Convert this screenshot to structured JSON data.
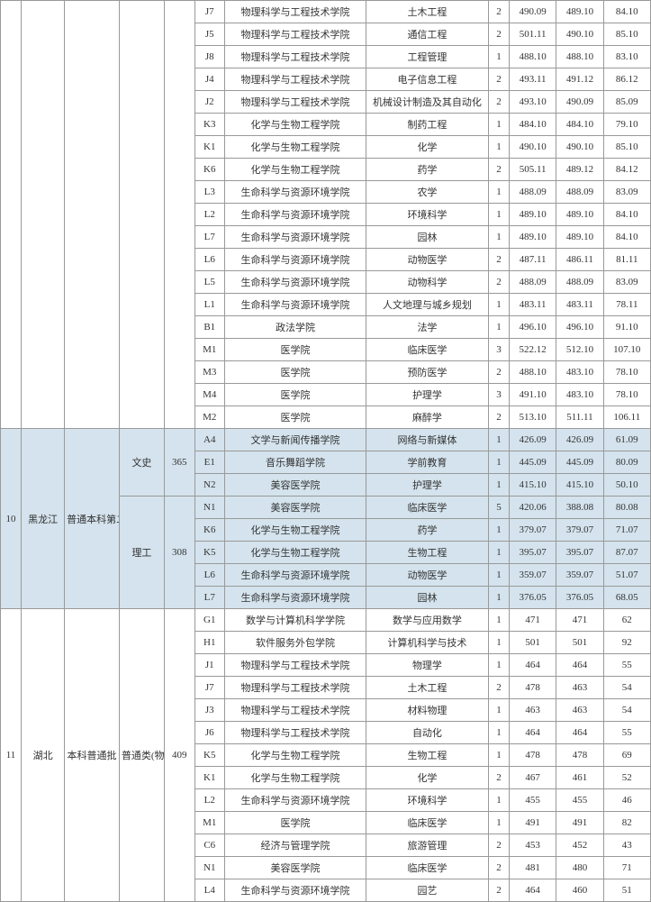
{
  "group1_rows": [
    {
      "code": "J7",
      "college": "物理科学与工程技术学院",
      "major": "土木工程",
      "n": "2",
      "a": "490.09",
      "b": "489.10",
      "c": "84.10"
    },
    {
      "code": "J5",
      "college": "物理科学与工程技术学院",
      "major": "通信工程",
      "n": "2",
      "a": "501.11",
      "b": "490.10",
      "c": "85.10"
    },
    {
      "code": "J8",
      "college": "物理科学与工程技术学院",
      "major": "工程管理",
      "n": "1",
      "a": "488.10",
      "b": "488.10",
      "c": "83.10"
    },
    {
      "code": "J4",
      "college": "物理科学与工程技术学院",
      "major": "电子信息工程",
      "n": "2",
      "a": "493.11",
      "b": "491.12",
      "c": "86.12"
    },
    {
      "code": "J2",
      "college": "物理科学与工程技术学院",
      "major": "机械设计制造及其自动化",
      "n": "2",
      "a": "493.10",
      "b": "490.09",
      "c": "85.09"
    },
    {
      "code": "K3",
      "college": "化学与生物工程学院",
      "major": "制药工程",
      "n": "1",
      "a": "484.10",
      "b": "484.10",
      "c": "79.10"
    },
    {
      "code": "K1",
      "college": "化学与生物工程学院",
      "major": "化学",
      "n": "1",
      "a": "490.10",
      "b": "490.10",
      "c": "85.10"
    },
    {
      "code": "K6",
      "college": "化学与生物工程学院",
      "major": "药学",
      "n": "2",
      "a": "505.11",
      "b": "489.12",
      "c": "84.12"
    },
    {
      "code": "L3",
      "college": "生命科学与资源环境学院",
      "major": "农学",
      "n": "1",
      "a": "488.09",
      "b": "488.09",
      "c": "83.09"
    },
    {
      "code": "L2",
      "college": "生命科学与资源环境学院",
      "major": "环境科学",
      "n": "1",
      "a": "489.10",
      "b": "489.10",
      "c": "84.10"
    },
    {
      "code": "L7",
      "college": "生命科学与资源环境学院",
      "major": "园林",
      "n": "1",
      "a": "489.10",
      "b": "489.10",
      "c": "84.10"
    },
    {
      "code": "L6",
      "college": "生命科学与资源环境学院",
      "major": "动物医学",
      "n": "2",
      "a": "487.11",
      "b": "486.11",
      "c": "81.11"
    },
    {
      "code": "L5",
      "college": "生命科学与资源环境学院",
      "major": "动物科学",
      "n": "2",
      "a": "488.09",
      "b": "488.09",
      "c": "83.09"
    },
    {
      "code": "L1",
      "college": "生命科学与资源环境学院",
      "major": "人文地理与城乡规划",
      "n": "1",
      "a": "483.11",
      "b": "483.11",
      "c": "78.11"
    },
    {
      "code": "B1",
      "college": "政法学院",
      "major": "法学",
      "n": "1",
      "a": "496.10",
      "b": "496.10",
      "c": "91.10"
    },
    {
      "code": "M1",
      "college": "医学院",
      "major": "临床医学",
      "n": "3",
      "a": "522.12",
      "b": "512.10",
      "c": "107.10"
    },
    {
      "code": "M3",
      "college": "医学院",
      "major": "预防医学",
      "n": "2",
      "a": "488.10",
      "b": "483.10",
      "c": "78.10"
    },
    {
      "code": "M4",
      "college": "医学院",
      "major": "护理学",
      "n": "3",
      "a": "491.10",
      "b": "483.10",
      "c": "78.10"
    },
    {
      "code": "M2",
      "college": "医学院",
      "major": "麻醉学",
      "n": "2",
      "a": "513.10",
      "b": "511.11",
      "c": "106.11"
    }
  ],
  "group2_idx": "10",
  "group2_prov": "黑龙江",
  "group2_batch": "普通本科第二批 A 段",
  "group2_subj1": "文史",
  "group2_line1": "365",
  "group2_subj2": "理工",
  "group2_line2": "308",
  "group2_rows1": [
    {
      "code": "A4",
      "college": "文学与新闻传播学院",
      "major": "网络与新媒体",
      "n": "1",
      "a": "426.09",
      "b": "426.09",
      "c": "61.09"
    },
    {
      "code": "E1",
      "college": "音乐舞蹈学院",
      "major": "学前教育",
      "n": "1",
      "a": "445.09",
      "b": "445.09",
      "c": "80.09"
    },
    {
      "code": "N2",
      "college": "美容医学院",
      "major": "护理学",
      "n": "1",
      "a": "415.10",
      "b": "415.10",
      "c": "50.10"
    }
  ],
  "group2_rows2": [
    {
      "code": "N1",
      "college": "美容医学院",
      "major": "临床医学",
      "n": "5",
      "a": "420.06",
      "b": "388.08",
      "c": "80.08"
    },
    {
      "code": "K6",
      "college": "化学与生物工程学院",
      "major": "药学",
      "n": "1",
      "a": "379.07",
      "b": "379.07",
      "c": "71.07"
    },
    {
      "code": "K5",
      "college": "化学与生物工程学院",
      "major": "生物工程",
      "n": "1",
      "a": "395.07",
      "b": "395.07",
      "c": "87.07"
    },
    {
      "code": "L6",
      "college": "生命科学与资源环境学院",
      "major": "动物医学",
      "n": "1",
      "a": "359.07",
      "b": "359.07",
      "c": "51.07"
    },
    {
      "code": "L7",
      "college": "生命科学与资源环境学院",
      "major": "园林",
      "n": "1",
      "a": "376.05",
      "b": "376.05",
      "c": "68.05"
    }
  ],
  "group3_idx": "11",
  "group3_prov": "湖北",
  "group3_batch": "本科普通批",
  "group3_subj": "普通类(物理)",
  "group3_line": "409",
  "group3_rows": [
    {
      "code": "G1",
      "college": "数学与计算机科学学院",
      "major": "数学与应用数学",
      "n": "1",
      "a": "471",
      "b": "471",
      "c": "62"
    },
    {
      "code": "H1",
      "college": "软件服务外包学院",
      "major": "计算机科学与技术",
      "n": "1",
      "a": "501",
      "b": "501",
      "c": "92"
    },
    {
      "code": "J1",
      "college": "物理科学与工程技术学院",
      "major": "物理学",
      "n": "1",
      "a": "464",
      "b": "464",
      "c": "55"
    },
    {
      "code": "J7",
      "college": "物理科学与工程技术学院",
      "major": "土木工程",
      "n": "2",
      "a": "478",
      "b": "463",
      "c": "54"
    },
    {
      "code": "J3",
      "college": "物理科学与工程技术学院",
      "major": "材料物理",
      "n": "1",
      "a": "463",
      "b": "463",
      "c": "54"
    },
    {
      "code": "J6",
      "college": "物理科学与工程技术学院",
      "major": "自动化",
      "n": "1",
      "a": "464",
      "b": "464",
      "c": "55"
    },
    {
      "code": "K5",
      "college": "化学与生物工程学院",
      "major": "生物工程",
      "n": "1",
      "a": "478",
      "b": "478",
      "c": "69"
    },
    {
      "code": "K1",
      "college": "化学与生物工程学院",
      "major": "化学",
      "n": "2",
      "a": "467",
      "b": "461",
      "c": "52"
    },
    {
      "code": "L2",
      "college": "生命科学与资源环境学院",
      "major": "环境科学",
      "n": "1",
      "a": "455",
      "b": "455",
      "c": "46"
    },
    {
      "code": "M1",
      "college": "医学院",
      "major": "临床医学",
      "n": "1",
      "a": "491",
      "b": "491",
      "c": "82"
    },
    {
      "code": "C6",
      "college": "经济与管理学院",
      "major": "旅游管理",
      "n": "2",
      "a": "453",
      "b": "452",
      "c": "43"
    },
    {
      "code": "N1",
      "college": "美容医学院",
      "major": "临床医学",
      "n": "2",
      "a": "481",
      "b": "480",
      "c": "71"
    },
    {
      "code": "L4",
      "college": "生命科学与资源环境学院",
      "major": "园艺",
      "n": "2",
      "a": "464",
      "b": "460",
      "c": "51"
    }
  ]
}
